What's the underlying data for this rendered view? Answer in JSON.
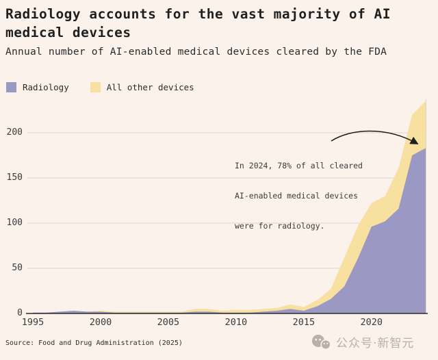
{
  "header": {
    "title": "Radiology accounts for the vast majority of AI medical devices",
    "subtitle": "Annual number of AI-enabled medical devices cleared by the FDA"
  },
  "source_line": "Source: Food and Drug Administration (2025)",
  "watermark": {
    "text": "公众号·新智元",
    "icon": "wechat-official-account-icon"
  },
  "colors": {
    "background": "#fbf2ec",
    "radiology": "#9b98c4",
    "other": "#f7e0a0",
    "gridline": "#ddd4ce",
    "axis": "#2b2b2b",
    "text": "#1f1f1f"
  },
  "chart_data": {
    "type": "area",
    "stacked": true,
    "title": "Radiology accounts for the vast majority of AI medical devices",
    "subtitle": "Annual number of AI-enabled medical devices cleared by the FDA",
    "xlabel": "",
    "ylabel": "",
    "legend_position": "top-left",
    "grid": true,
    "x": [
      1995,
      1996,
      1997,
      1998,
      1999,
      2000,
      2001,
      2002,
      2003,
      2004,
      2005,
      2006,
      2007,
      2008,
      2009,
      2010,
      2011,
      2012,
      2013,
      2014,
      2015,
      2016,
      2017,
      2018,
      2019,
      2020,
      2021,
      2022,
      2023,
      2024
    ],
    "series": [
      {
        "name": "Radiology",
        "color": "#9b98c4",
        "values": [
          1,
          1,
          2,
          3,
          2,
          2,
          1,
          1,
          1,
          1,
          1,
          1,
          2,
          2,
          1,
          1,
          1,
          2,
          3,
          5,
          3,
          8,
          16,
          30,
          61,
          96,
          102,
          116,
          175,
          183
        ]
      },
      {
        "name": "All other devices",
        "color": "#f7e0a0",
        "values": [
          0,
          0,
          0,
          0,
          0,
          1,
          1,
          1,
          1,
          1,
          1,
          1,
          3,
          3,
          2,
          3,
          3,
          3,
          3,
          5,
          4,
          7,
          11,
          32,
          36,
          26,
          28,
          45,
          45,
          52
        ]
      }
    ],
    "xticks": [
      1995,
      2000,
      2005,
      2010,
      2015,
      2020
    ],
    "yticks": [
      0,
      50,
      100,
      150,
      200
    ],
    "ylim": [
      0,
      240
    ],
    "annotation": {
      "lines": [
        "In 2024, 78% of all cleared",
        "AI-enabled medical devices",
        "were for radiology."
      ],
      "arrow_points_to": "2024 radiology value (183)"
    }
  }
}
